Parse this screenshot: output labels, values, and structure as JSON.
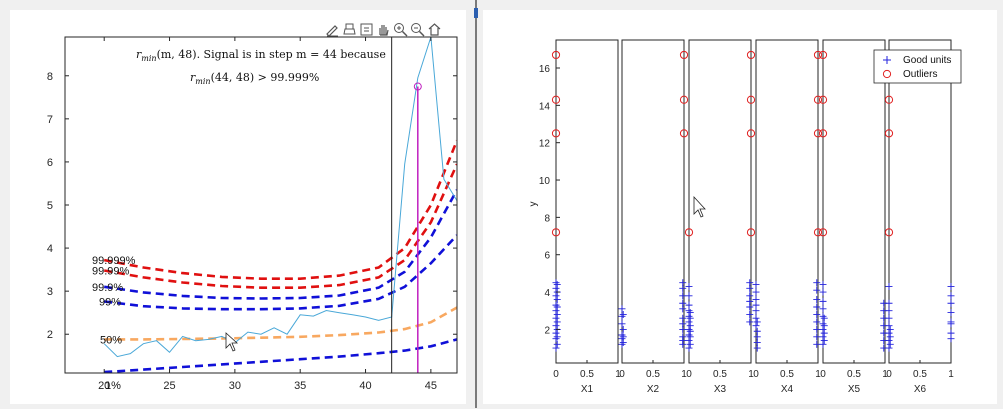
{
  "left_figure": {
    "annotation_line1": "r",
    "annotation_line1_sub": "min",
    "annotation_line1_rest": "(m, 48). Signal is in step m = 44 because",
    "annotation_line2": "r",
    "annotation_line2_sub": "min",
    "annotation_line2_rest": "(44, 48) > 99.999%",
    "toolbar_icons": [
      "edit-icon",
      "print-icon",
      "export-icon",
      "pan-icon",
      "zoom-in-icon",
      "zoom-out-icon",
      "home-icon"
    ],
    "band_labels": [
      "99.999%",
      "99.99%",
      "99.9%",
      "99%",
      "50%",
      "1%"
    ],
    "xticks": [
      "20",
      "25",
      "30",
      "35",
      "40",
      "45"
    ],
    "yticks": [
      "2",
      "3",
      "4",
      "5",
      "6",
      "7",
      "8"
    ]
  },
  "right_figure": {
    "ylabel": "y",
    "yticks": [
      "2",
      "4",
      "6",
      "8",
      "10",
      "12",
      "14",
      "16"
    ],
    "panel_xlabels": [
      "X1",
      "X2",
      "X3",
      "X4",
      "X5",
      "X6"
    ],
    "panel_xticks": [
      "0",
      "0.5",
      "1"
    ],
    "legend": {
      "good": "Good units",
      "outliers": "Outliers"
    }
  },
  "colors": {
    "red_band": "#e01010",
    "blue_band": "#1010d8",
    "orange_band": "#f8a860",
    "signal_line": "#4aa8d8",
    "marker_magenta": "#c020c0",
    "good_units": "#2222dd",
    "outliers": "#e02020"
  },
  "chart_data": [
    {
      "type": "line",
      "title": "",
      "xlim": [
        17,
        47
      ],
      "ylim": [
        1.1,
        8.9
      ],
      "xticks": [
        20,
        25,
        30,
        35,
        40,
        45
      ],
      "yticks": [
        2,
        3,
        4,
        5,
        6,
        7,
        8
      ],
      "signal": {
        "x": [
          20,
          21,
          22,
          23,
          24,
          25,
          26,
          27,
          28,
          29,
          30,
          31,
          32,
          33,
          34,
          35,
          36,
          37,
          38,
          39,
          40,
          41,
          42,
          43,
          44,
          45,
          46,
          47
        ],
        "y": [
          1.78,
          1.48,
          1.55,
          1.78,
          1.85,
          1.58,
          1.95,
          1.85,
          1.88,
          1.95,
          1.8,
          2.05,
          2.0,
          2.15,
          2.0,
          2.45,
          2.42,
          2.55,
          2.5,
          2.45,
          2.4,
          2.32,
          2.4,
          5.95,
          7.95,
          8.9,
          5.6,
          5.1
        ]
      },
      "vertical_line_x": 42,
      "marker": {
        "x": 44,
        "y": 7.75
      },
      "stem_x": 44,
      "bands": [
        {
          "label": "99.999%",
          "style": "red-dash",
          "y": [
            3.72,
            3.55,
            3.42,
            3.33,
            3.29,
            3.29,
            3.36,
            3.55,
            4.0,
            5.0,
            6.5
          ],
          "x": [
            20,
            23,
            26,
            29,
            32,
            35,
            38,
            41,
            43,
            45,
            47
          ]
        },
        {
          "label": "99.99%",
          "style": "red-dash",
          "y": [
            3.48,
            3.32,
            3.2,
            3.12,
            3.08,
            3.08,
            3.14,
            3.32,
            3.72,
            4.6,
            5.95
          ],
          "x": [
            20,
            23,
            26,
            29,
            32,
            35,
            38,
            41,
            43,
            45,
            47
          ]
        },
        {
          "label": "99.9%",
          "style": "blue-dash",
          "y": [
            3.1,
            2.97,
            2.89,
            2.84,
            2.83,
            2.84,
            2.9,
            3.08,
            3.45,
            4.25,
            5.35
          ],
          "x": [
            20,
            23,
            26,
            29,
            32,
            35,
            38,
            41,
            43,
            45,
            47
          ]
        },
        {
          "label": "99%",
          "style": "blue-dash",
          "y": [
            2.76,
            2.65,
            2.6,
            2.58,
            2.58,
            2.6,
            2.66,
            2.82,
            3.1,
            3.65,
            4.3
          ],
          "x": [
            20,
            23,
            26,
            29,
            32,
            35,
            38,
            41,
            43,
            45,
            47
          ]
        },
        {
          "label": "50%",
          "style": "orange-dash",
          "y": [
            1.88,
            1.88,
            1.89,
            1.9,
            1.92,
            1.94,
            1.98,
            2.04,
            2.12,
            2.28,
            2.62
          ],
          "x": [
            20,
            23,
            26,
            29,
            32,
            35,
            38,
            41,
            43,
            45,
            47
          ]
        },
        {
          "label": "1%",
          "style": "blue-dash",
          "y": [
            1.12,
            1.18,
            1.24,
            1.3,
            1.36,
            1.42,
            1.48,
            1.56,
            1.62,
            1.72,
            1.88
          ],
          "x": [
            20,
            23,
            26,
            29,
            32,
            35,
            38,
            41,
            43,
            45,
            47
          ]
        }
      ]
    },
    {
      "type": "scatter",
      "ylabel": "y",
      "ylim": [
        0.2,
        17.5
      ],
      "xlim": [
        0,
        1
      ],
      "yticks": [
        2,
        4,
        6,
        8,
        10,
        12,
        14,
        16
      ],
      "panels": [
        {
          "xlabel": "X1",
          "good": [
            {
              "x": 0,
              "y": [
                1.0,
                1.5,
                1.8,
                2.2,
                2.6,
                3.0,
                3.3,
                3.8,
                4.2,
                4.5
              ]
            },
            {
              "x": 0.02,
              "y": [
                1.2,
                1.6,
                2.0,
                2.4,
                2.8,
                3.2,
                3.6,
                4.0,
                4.4
              ]
            }
          ],
          "outliers": [
            {
              "x": 0,
              "y": [
                7.2,
                12.5,
                14.3,
                16.7
              ]
            }
          ]
        },
        {
          "xlabel": "X2",
          "good": [
            {
              "x": 0,
              "y": [
                1.2,
                1.5,
                1.7,
                2.3,
                2.7,
                3.1
              ]
            },
            {
              "x": 0.02,
              "y": [
                1.3,
                1.6,
                2.0,
                2.8
              ]
            },
            {
              "x": 0.98,
              "y": [
                1.2,
                1.4,
                1.6,
                2.0,
                2.3,
                2.6,
                3.1,
                3.4,
                3.8,
                4.2,
                4.5
              ]
            }
          ],
          "outliers": [
            {
              "x": 1,
              "y": [
                12.5,
                14.3,
                16.7
              ]
            }
          ]
        },
        {
          "xlabel": "X3",
          "good": [
            {
              "x": 0,
              "y": [
                1.0,
                1.4,
                1.7,
                2.0,
                2.4,
                2.7,
                3.0,
                3.3,
                3.8,
                4.3
              ]
            },
            {
              "x": 0.02,
              "y": [
                1.2,
                1.6,
                1.9,
                2.2,
                2.6,
                2.9
              ]
            },
            {
              "x": 0.98,
              "y": [
                2.4,
                2.8,
                3.2,
                3.5,
                3.8,
                4.2,
                4.5
              ]
            }
          ],
          "outliers": [
            {
              "x": 0,
              "y": [
                7.2
              ]
            },
            {
              "x": 1,
              "y": [
                7.2,
                12.5,
                14.3,
                16.7
              ]
            }
          ]
        },
        {
          "xlabel": "X4",
          "good": [
            {
              "x": 0,
              "y": [
                2.2,
                2.6,
                3.0,
                3.3,
                3.6,
                4.0,
                4.4
              ]
            },
            {
              "x": 0.02,
              "y": [
                1.0,
                1.3,
                1.6,
                1.9,
                2.4
              ]
            },
            {
              "x": 0.98,
              "y": [
                1.2,
                1.6,
                2.0,
                2.4,
                2.8,
                3.2,
                3.6,
                4.1,
                4.5
              ]
            }
          ],
          "outliers": [
            {
              "x": 1,
              "y": [
                7.2,
                12.5,
                14.3,
                16.7
              ]
            }
          ]
        },
        {
          "xlabel": "X5",
          "good": [
            {
              "x": 0,
              "y": [
                1.2,
                1.6,
                2.0,
                2.3,
                2.7,
                3.1,
                3.5,
                4.0,
                4.4
              ]
            },
            {
              "x": 0.02,
              "y": [
                1.4,
                1.8,
                2.2,
                2.6
              ]
            },
            {
              "x": 0.98,
              "y": [
                1.0,
                1.4,
                1.8,
                2.2,
                2.6,
                3.0,
                3.4
              ]
            }
          ],
          "outliers": [
            {
              "x": 0,
              "y": [
                7.2,
                12.5,
                14.3,
                16.7
              ]
            }
          ]
        },
        {
          "xlabel": "X6",
          "good": [
            {
              "x": 0,
              "y": [
                1.0,
                1.4,
                1.8,
                2.2,
                2.6,
                3.0,
                3.4,
                4.3
              ]
            },
            {
              "x": 0.02,
              "y": [
                1.2,
                1.6,
                2.0
              ]
            },
            {
              "x": 1,
              "y": [
                1.5,
                1.8,
                2.3,
                2.4,
                2.9,
                3.4,
                3.8,
                4.3
              ]
            }
          ],
          "outliers": [
            {
              "x": 0,
              "y": [
                7.2,
                12.5,
                14.3,
                16.7
              ]
            }
          ]
        }
      ],
      "legend": [
        "Good units",
        "Outliers"
      ],
      "legend_position": "top-right"
    }
  ]
}
